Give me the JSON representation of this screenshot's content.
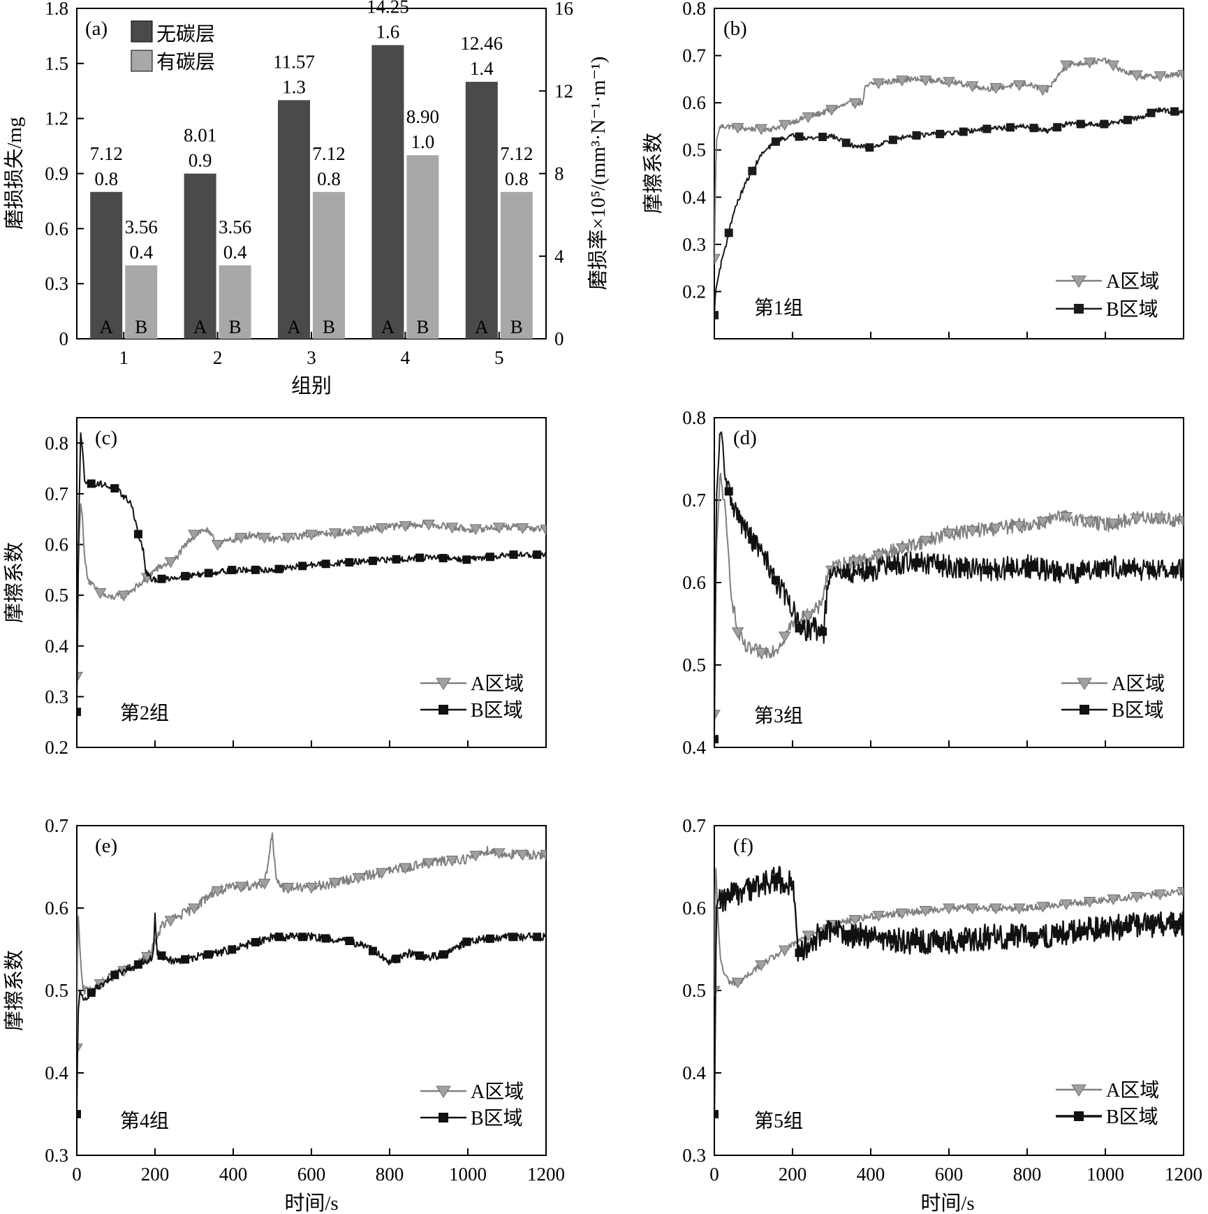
{
  "panel_a": {
    "tag": "(a)",
    "ylabel_left": "磨损损失/mg",
    "ylabel_right": "磨损率×10⁵/(mm³·N⁻¹·m⁻¹)",
    "xlabel": "组别",
    "legend": [
      {
        "label": "无碳层",
        "color": "#4a4a4a"
      },
      {
        "label": "有碳层",
        "color": "#a8a8a8"
      }
    ],
    "bar_letters": [
      "A",
      "B"
    ],
    "colors": {
      "no_carbon": "#4a4a4a",
      "with_carbon": "#a8a8a8"
    }
  },
  "panel_b": {
    "tag": "(b)",
    "group_label": "第1组",
    "ylabel": "摩擦系数",
    "legend": [
      "A区域",
      "B区域"
    ]
  },
  "panel_c": {
    "tag": "(c)",
    "group_label": "第2组",
    "ylabel": "摩擦系数",
    "legend": [
      "A区域",
      "B区域"
    ]
  },
  "panel_d": {
    "tag": "(d)",
    "group_label": "第3组",
    "ylabel": "摩擦系数",
    "legend": [
      "A区域",
      "B区域"
    ]
  },
  "panel_e": {
    "tag": "(e)",
    "group_label": "第4组",
    "ylabel": "摩擦系数",
    "legend": [
      "A区域",
      "B区域"
    ],
    "xlabel": "时间/s"
  },
  "panel_f": {
    "tag": "(f)",
    "group_label": "第5组",
    "ylabel": "摩擦系数",
    "legend": [
      "A区域",
      "B区域"
    ],
    "xlabel": "时间/s"
  },
  "chart_data": [
    {
      "id": "a",
      "type": "bar",
      "categories": [
        "1",
        "2",
        "3",
        "4",
        "5"
      ],
      "xlabel": "组别",
      "ylabel": "磨损损失/mg",
      "ylabel_right": "磨损率×10⁵/(mm³·N⁻¹·m⁻¹)",
      "ylim": [
        0,
        1.8
      ],
      "yticks": [
        "0",
        "0.3",
        "0.6",
        "0.9",
        "1.2",
        "1.5",
        "1.8"
      ],
      "ylim_right": [
        0,
        16
      ],
      "yticks_right": [
        "0",
        "4",
        "8",
        "12",
        "16"
      ],
      "series": [
        {
          "name": "无碳层",
          "values": [
            0.8,
            0.9,
            1.3,
            1.6,
            1.4
          ],
          "value_labels": [
            "0.8",
            "0.9",
            "1.3",
            "1.6",
            "1.4"
          ],
          "rate_labels": [
            "7.12",
            "8.01",
            "11.57",
            "14.25",
            "12.46"
          ]
        },
        {
          "name": "有碳层",
          "values": [
            0.4,
            0.4,
            0.8,
            1.0,
            0.8
          ],
          "value_labels": [
            "0.4",
            "0.4",
            "0.8",
            "1.0",
            "0.8"
          ],
          "rate_labels": [
            "3.56",
            "3.56",
            "7.12",
            "8.90",
            "7.12"
          ]
        }
      ],
      "legend_position": "top-left"
    },
    {
      "id": "b",
      "type": "line",
      "xlim": [
        0,
        1200
      ],
      "ylim": [
        0.1,
        0.8
      ],
      "xticks": [
        0,
        200,
        400,
        600,
        800,
        1000,
        1200
      ],
      "yticks": [
        "0.2",
        "0.3",
        "0.4",
        "0.5",
        "0.6",
        "0.7",
        "0.8"
      ],
      "ytick_values": [
        0.2,
        0.3,
        0.4,
        0.5,
        0.6,
        0.7,
        0.8
      ],
      "ylabel": "摩擦系数",
      "legend_position": "bottom-right",
      "series": [
        {
          "name": "A区域",
          "color": "#808080",
          "marker": "triangle-down",
          "noise": 0.006,
          "x": [
            0,
            5,
            15,
            40,
            80,
            150,
            200,
            280,
            350,
            380,
            385,
            400,
            500,
            600,
            700,
            800,
            850,
            900,
            1000,
            1050,
            1100,
            1200
          ],
          "y": [
            0.27,
            0.52,
            0.55,
            0.55,
            0.545,
            0.545,
            0.56,
            0.58,
            0.6,
            0.6,
            0.63,
            0.64,
            0.65,
            0.645,
            0.63,
            0.64,
            0.625,
            0.68,
            0.69,
            0.665,
            0.655,
            0.66
          ]
        },
        {
          "name": "B区域",
          "color": "#1a1a1a",
          "marker": "square",
          "noise": 0.005,
          "x": [
            0,
            3,
            10,
            20,
            30,
            50,
            80,
            120,
            160,
            200,
            250,
            300,
            350,
            400,
            450,
            500,
            600,
            700,
            800,
            850,
            900,
            1000,
            1100,
            1130,
            1200
          ],
          "y": [
            0.15,
            0.2,
            0.23,
            0.27,
            0.3,
            0.37,
            0.43,
            0.49,
            0.52,
            0.53,
            0.525,
            0.53,
            0.51,
            0.505,
            0.52,
            0.53,
            0.535,
            0.545,
            0.55,
            0.54,
            0.555,
            0.555,
            0.57,
            0.585,
            0.58
          ]
        }
      ]
    },
    {
      "id": "c",
      "type": "line",
      "xlim": [
        0,
        1200
      ],
      "ylim": [
        0.2,
        0.85
      ],
      "xticks": [
        0,
        200,
        400,
        600,
        800,
        1000,
        1200
      ],
      "yticks": [
        "0.2",
        "0.3",
        "0.4",
        "0.5",
        "0.6",
        "0.7",
        "0.8"
      ],
      "ytick_values": [
        0.2,
        0.3,
        0.4,
        0.5,
        0.6,
        0.7,
        0.8
      ],
      "ylabel": "摩擦系数",
      "legend_position": "bottom-right",
      "series": [
        {
          "name": "A区域",
          "color": "#808080",
          "marker": "triangle-down",
          "noise": 0.007,
          "x": [
            0,
            5,
            10,
            15,
            20,
            30,
            50,
            80,
            120,
            160,
            200,
            250,
            300,
            330,
            360,
            400,
            450,
            500,
            600,
            700,
            800,
            900,
            1000,
            1100,
            1200
          ],
          "y": [
            0.34,
            0.6,
            0.68,
            0.65,
            0.57,
            0.53,
            0.51,
            0.495,
            0.5,
            0.52,
            0.55,
            0.57,
            0.62,
            0.63,
            0.6,
            0.61,
            0.62,
            0.61,
            0.62,
            0.625,
            0.635,
            0.64,
            0.63,
            0.635,
            0.63
          ]
        },
        {
          "name": "B区域",
          "color": "#111111",
          "marker": "square",
          "noise": 0.006,
          "x": [
            0,
            5,
            10,
            15,
            20,
            30,
            60,
            100,
            140,
            160,
            170,
            175,
            190,
            250,
            300,
            400,
            500,
            600,
            700,
            800,
            900,
            1000,
            1100,
            1200
          ],
          "y": [
            0.27,
            0.65,
            0.82,
            0.78,
            0.73,
            0.72,
            0.72,
            0.71,
            0.68,
            0.61,
            0.59,
            0.55,
            0.53,
            0.535,
            0.54,
            0.55,
            0.55,
            0.56,
            0.565,
            0.57,
            0.575,
            0.57,
            0.58,
            0.58
          ]
        }
      ]
    },
    {
      "id": "d",
      "type": "line",
      "xlim": [
        0,
        1200
      ],
      "ylim": [
        0.4,
        0.8
      ],
      "xticks": [
        0,
        200,
        400,
        600,
        800,
        1000,
        1200
      ],
      "yticks": [
        "0.4",
        "0.5",
        "0.6",
        "0.7",
        "0.8"
      ],
      "ytick_values": [
        0.4,
        0.5,
        0.6,
        0.7,
        0.8
      ],
      "ylabel": "摩擦系数",
      "legend_position": "bottom-right",
      "series": [
        {
          "name": "A区域",
          "color": "#808080",
          "marker": "triangle-down",
          "noise": 0.009,
          "x": [
            0,
            5,
            15,
            25,
            35,
            45,
            60,
            80,
            120,
            160,
            200,
            240,
            270,
            290,
            310,
            400,
            500,
            600,
            700,
            800,
            900,
            1000,
            1100,
            1200
          ],
          "y": [
            0.44,
            0.64,
            0.73,
            0.7,
            0.64,
            0.58,
            0.54,
            0.52,
            0.515,
            0.52,
            0.55,
            0.56,
            0.57,
            0.61,
            0.62,
            0.63,
            0.645,
            0.66,
            0.665,
            0.67,
            0.68,
            0.67,
            0.68,
            0.675
          ]
        },
        {
          "name": "B区域",
          "color": "#111111",
          "marker": "square",
          "noise": 0.014,
          "x": [
            0,
            5,
            15,
            20,
            30,
            60,
            100,
            130,
            160,
            200,
            220,
            250,
            280,
            290,
            310,
            400,
            500,
            600,
            700,
            800,
            900,
            1000,
            1100,
            1200
          ],
          "y": [
            0.41,
            0.7,
            0.78,
            0.77,
            0.72,
            0.68,
            0.65,
            0.63,
            0.6,
            0.57,
            0.54,
            0.545,
            0.54,
            0.6,
            0.61,
            0.615,
            0.625,
            0.62,
            0.615,
            0.62,
            0.61,
            0.62,
            0.615,
            0.615
          ]
        }
      ]
    },
    {
      "id": "e",
      "type": "line",
      "xlim": [
        0,
        1200
      ],
      "ylim": [
        0.3,
        0.7
      ],
      "xticks": [
        0,
        200,
        400,
        600,
        800,
        1000,
        1200
      ],
      "yticks": [
        "0.3",
        "0.4",
        "0.5",
        "0.6",
        "0.7"
      ],
      "ytick_values": [
        0.3,
        0.4,
        0.5,
        0.6,
        0.7
      ],
      "xlabel": "时间/s",
      "ylabel": "摩擦系数",
      "legend_position": "bottom-right",
      "series": [
        {
          "name": "A区域",
          "color": "#808080",
          "marker": "triangle-down",
          "noise": 0.006,
          "x": [
            0,
            3,
            8,
            15,
            25,
            50,
            100,
            150,
            190,
            200,
            220,
            300,
            350,
            400,
            480,
            500,
            510,
            530,
            600,
            700,
            800,
            900,
            1000,
            1050,
            1100,
            1200
          ],
          "y": [
            0.43,
            0.6,
            0.55,
            0.5,
            0.5,
            0.505,
            0.52,
            0.53,
            0.545,
            0.56,
            0.58,
            0.6,
            0.62,
            0.625,
            0.63,
            0.69,
            0.63,
            0.625,
            0.625,
            0.635,
            0.645,
            0.655,
            0.66,
            0.67,
            0.665,
            0.665
          ]
        },
        {
          "name": "B区域",
          "color": "#111111",
          "marker": "square",
          "noise": 0.005,
          "x": [
            0,
            3,
            8,
            15,
            30,
            60,
            100,
            150,
            195,
            200,
            205,
            250,
            300,
            400,
            500,
            600,
            700,
            750,
            800,
            850,
            900,
            950,
            1000,
            1100,
            1200
          ],
          "y": [
            0.35,
            0.47,
            0.5,
            0.49,
            0.495,
            0.505,
            0.52,
            0.53,
            0.54,
            0.595,
            0.545,
            0.535,
            0.54,
            0.55,
            0.565,
            0.565,
            0.56,
            0.55,
            0.535,
            0.545,
            0.54,
            0.545,
            0.56,
            0.565,
            0.565
          ]
        }
      ]
    },
    {
      "id": "f",
      "type": "line",
      "xlim": [
        0,
        1200
      ],
      "ylim": [
        0.3,
        0.7
      ],
      "xticks": [
        0,
        200,
        400,
        600,
        800,
        1000,
        1200
      ],
      "yticks": [
        "0.3",
        "0.4",
        "0.5",
        "0.6",
        "0.7"
      ],
      "ytick_values": [
        0.3,
        0.4,
        0.5,
        0.6,
        0.7
      ],
      "xlabel": "时间/s",
      "ylabel": "摩擦系数",
      "legend_position": "bottom-right",
      "series": [
        {
          "name": "A区域",
          "color": "#808080",
          "marker": "triangle-down",
          "noise": 0.004,
          "x": [
            0,
            3,
            8,
            15,
            25,
            40,
            60,
            80,
            100,
            150,
            200,
            250,
            300,
            400,
            500,
            600,
            700,
            800,
            900,
            1000,
            1100,
            1200
          ],
          "y": [
            0.5,
            0.66,
            0.6,
            0.54,
            0.52,
            0.51,
            0.51,
            0.515,
            0.525,
            0.54,
            0.555,
            0.57,
            0.58,
            0.59,
            0.595,
            0.6,
            0.6,
            0.6,
            0.605,
            0.61,
            0.615,
            0.62
          ]
        },
        {
          "name": "B区域",
          "color": "#111111",
          "marker": "square",
          "noise": 0.016,
          "x": [
            0,
            5,
            10,
            20,
            40,
            80,
            120,
            160,
            200,
            210,
            215,
            230,
            260,
            300,
            400,
            500,
            600,
            700,
            800,
            900,
            1000,
            1100,
            1200
          ],
          "y": [
            0.35,
            0.6,
            0.61,
            0.61,
            0.615,
            0.62,
            0.63,
            0.635,
            0.63,
            0.57,
            0.545,
            0.55,
            0.565,
            0.57,
            0.565,
            0.56,
            0.56,
            0.565,
            0.565,
            0.57,
            0.575,
            0.58,
            0.58
          ]
        }
      ]
    }
  ]
}
